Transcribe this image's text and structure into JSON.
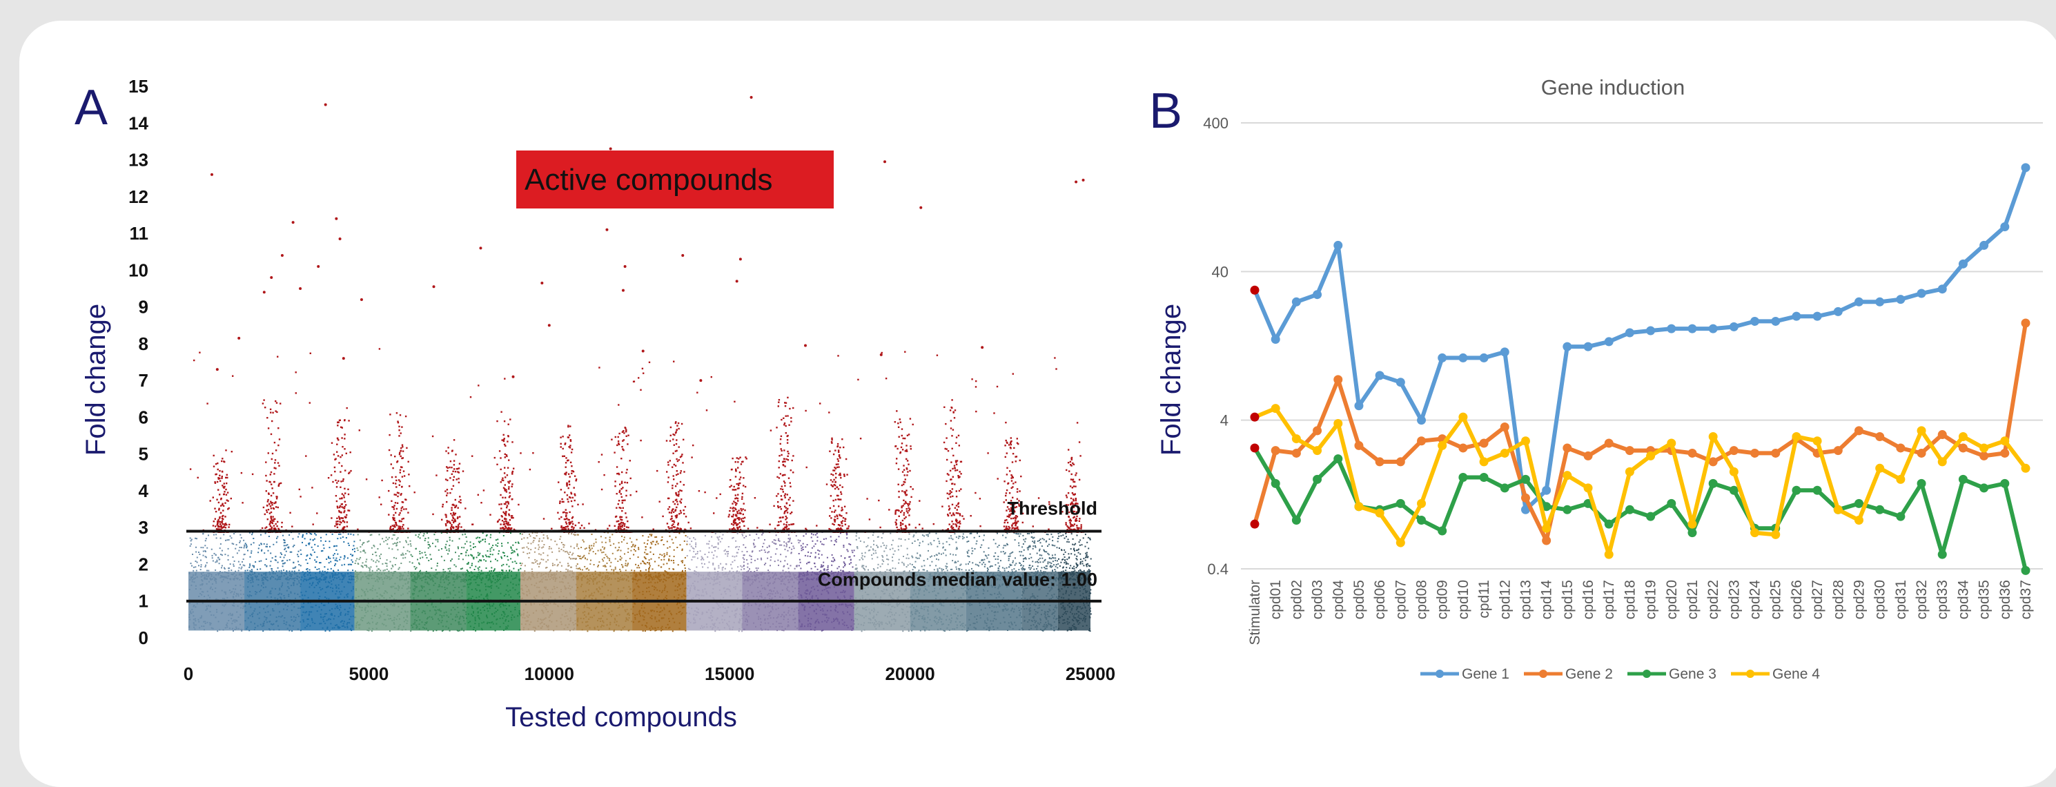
{
  "chart_data": [
    {
      "type": "scatter",
      "panel_letter": "A",
      "xlabel": "Tested compounds",
      "ylabel": "Fold change",
      "xlim": [
        0,
        25000
      ],
      "ylim": [
        0,
        15
      ],
      "x_ticks": [
        0,
        5000,
        10000,
        15000,
        20000,
        25000
      ],
      "y_ticks": [
        0,
        1,
        2,
        3,
        4,
        5,
        6,
        7,
        8,
        9,
        10,
        11,
        12,
        13,
        14,
        15
      ],
      "x_tick_labels": [
        "0",
        "5000",
        "10000",
        "15000",
        "20000",
        "25000"
      ],
      "y_tick_labels": [
        "0",
        "1",
        "2",
        "3",
        "4",
        "5",
        "6",
        "7",
        "8",
        "9",
        "10",
        "11",
        "12",
        "13",
        "14",
        "15"
      ],
      "active_label": "Active compounds",
      "threshold": {
        "value": 2.9,
        "label": "Threshold"
      },
      "median": {
        "value": 1.0,
        "label": "Compounds median value: 1.00"
      },
      "plates": [
        {
          "x_start": 0,
          "x_end": 1550,
          "color": "#6a8caa"
        },
        {
          "x_start": 1550,
          "x_end": 3100,
          "color": "#3d78a3"
        },
        {
          "x_start": 3100,
          "x_end": 4600,
          "color": "#1f6fa8"
        },
        {
          "x_start": 4600,
          "x_end": 6150,
          "color": "#6e9a82"
        },
        {
          "x_start": 6150,
          "x_end": 7700,
          "color": "#3f8a5e"
        },
        {
          "x_start": 7700,
          "x_end": 9200,
          "color": "#22874a"
        },
        {
          "x_start": 9200,
          "x_end": 10750,
          "color": "#ad9677"
        },
        {
          "x_start": 10750,
          "x_end": 12300,
          "color": "#a87f3f"
        },
        {
          "x_start": 12300,
          "x_end": 13800,
          "color": "#a2681c"
        },
        {
          "x_start": 13800,
          "x_end": 15350,
          "color": "#a7a3bb"
        },
        {
          "x_start": 15350,
          "x_end": 16900,
          "color": "#8a7ea8"
        },
        {
          "x_start": 16900,
          "x_end": 18450,
          "color": "#6e5a98"
        },
        {
          "x_start": 18450,
          "x_end": 20000,
          "color": "#8c9ca6"
        },
        {
          "x_start": 20000,
          "x_end": 21550,
          "color": "#6d8a98"
        },
        {
          "x_start": 21550,
          "x_end": 23100,
          "color": "#557789"
        },
        {
          "x_start": 23100,
          "x_end": 24100,
          "color": "#4b6b7c"
        },
        {
          "x_start": 24100,
          "x_end": 25000,
          "color": "#2f4b5a"
        }
      ],
      "inactive_range": [
        0.0,
        2.9
      ],
      "active_color": "#b0171a",
      "active_hotspots": [
        {
          "x": 900,
          "y_max": 5.0
        },
        {
          "x": 2300,
          "y_max": 6.5
        },
        {
          "x": 4200,
          "y_max": 6.0
        },
        {
          "x": 5800,
          "y_max": 6.2
        },
        {
          "x": 7300,
          "y_max": 5.2
        },
        {
          "x": 8800,
          "y_max": 6.0
        },
        {
          "x": 10500,
          "y_max": 5.8
        },
        {
          "x": 12000,
          "y_max": 5.8
        },
        {
          "x": 13500,
          "y_max": 6.0
        },
        {
          "x": 15200,
          "y_max": 5.0
        },
        {
          "x": 16500,
          "y_max": 6.5
        },
        {
          "x": 18000,
          "y_max": 5.5
        },
        {
          "x": 19800,
          "y_max": 6.0
        },
        {
          "x": 21200,
          "y_max": 6.5
        },
        {
          "x": 22800,
          "y_max": 5.5
        },
        {
          "x": 24500,
          "y_max": 5.0
        }
      ],
      "outliers": [
        {
          "x": 650,
          "y": 12.6
        },
        {
          "x": 3800,
          "y": 14.5
        },
        {
          "x": 15600,
          "y": 14.7
        },
        {
          "x": 11700,
          "y": 13.3
        },
        {
          "x": 19300,
          "y": 12.95
        },
        {
          "x": 24600,
          "y": 12.4
        },
        {
          "x": 24800,
          "y": 12.45
        },
        {
          "x": 2900,
          "y": 11.3
        },
        {
          "x": 4100,
          "y": 11.4
        },
        {
          "x": 20300,
          "y": 11.7
        },
        {
          "x": 11600,
          "y": 11.1
        },
        {
          "x": 4200,
          "y": 10.85
        },
        {
          "x": 8100,
          "y": 10.6
        },
        {
          "x": 2600,
          "y": 10.4
        },
        {
          "x": 13700,
          "y": 10.4
        },
        {
          "x": 15300,
          "y": 10.3
        },
        {
          "x": 12100,
          "y": 10.1
        },
        {
          "x": 2300,
          "y": 9.8
        },
        {
          "x": 3600,
          "y": 10.1
        },
        {
          "x": 15200,
          "y": 9.7
        },
        {
          "x": 9800,
          "y": 9.65
        },
        {
          "x": 6800,
          "y": 9.55
        },
        {
          "x": 2100,
          "y": 9.4
        },
        {
          "x": 3100,
          "y": 9.5
        },
        {
          "x": 12050,
          "y": 9.45
        },
        {
          "x": 4800,
          "y": 9.2
        },
        {
          "x": 10000,
          "y": 8.5
        },
        {
          "x": 1400,
          "y": 8.15
        },
        {
          "x": 17100,
          "y": 7.95
        },
        {
          "x": 22000,
          "y": 7.9
        },
        {
          "x": 12600,
          "y": 7.8
        },
        {
          "x": 19200,
          "y": 7.7
        },
        {
          "x": 800,
          "y": 7.3
        },
        {
          "x": 4300,
          "y": 7.6
        },
        {
          "x": 9000,
          "y": 7.1
        },
        {
          "x": 14200,
          "y": 7.0
        }
      ]
    },
    {
      "type": "line",
      "panel_letter": "B",
      "title": "Gene induction",
      "ylabel": "Fold change",
      "xlabel": "",
      "y_scale": "log10",
      "ylim": [
        0.4,
        400
      ],
      "y_ticks": [
        0.4,
        4,
        40,
        400
      ],
      "y_tick_labels": [
        "0.4",
        "4",
        "40",
        "400"
      ],
      "grid": true,
      "legend_position": "bottom",
      "categories": [
        "Stimulator",
        "cpd01",
        "cpd02",
        "cpd03",
        "cpd04",
        "cpd05",
        "cpd06",
        "cpd07",
        "cpd08",
        "cpd09",
        "cpd10",
        "cpd11",
        "cpd12",
        "cpd13",
        "cpd14",
        "cpd15",
        "cpd16",
        "cpd17",
        "cpd18",
        "cpd19",
        "cpd20",
        "cpd21",
        "cpd22",
        "cpd23",
        "cpd24",
        "cpd25",
        "cpd26",
        "cpd27",
        "cpd28",
        "cpd29",
        "cpd30",
        "cpd31",
        "cpd32",
        "cpd33",
        "cpd34",
        "cpd35",
        "cpd36",
        "cpd37"
      ],
      "series": [
        {
          "name": "Gene 1",
          "color": "#5b9bd5",
          "values": [
            30,
            14,
            25,
            28,
            60,
            5.0,
            8.0,
            7.2,
            4.0,
            10.5,
            10.5,
            10.5,
            11.5,
            1.0,
            1.35,
            12.5,
            12.5,
            13.5,
            15.5,
            16,
            16.5,
            16.5,
            16.5,
            17,
            18.5,
            18.5,
            20,
            20,
            21.5,
            25,
            25,
            26,
            28.5,
            30.5,
            45,
            60,
            80,
            200
          ]
        },
        {
          "name": "Gene 2",
          "color": "#ed7d31",
          "values": [
            0.8,
            2.5,
            2.4,
            3.4,
            7.5,
            2.7,
            2.1,
            2.1,
            2.9,
            3.0,
            2.6,
            2.8,
            3.6,
            1.2,
            0.62,
            2.6,
            2.3,
            2.8,
            2.5,
            2.5,
            2.5,
            2.4,
            2.1,
            2.5,
            2.4,
            2.4,
            3.0,
            2.4,
            2.5,
            3.4,
            3.1,
            2.6,
            2.4,
            3.2,
            2.6,
            2.3,
            2.4,
            18
          ]
        },
        {
          "name": "Gene 3",
          "color": "#2ea049",
          "values": [
            2.6,
            1.5,
            0.85,
            1.6,
            2.2,
            1.05,
            1.0,
            1.1,
            0.85,
            0.72,
            1.65,
            1.65,
            1.4,
            1.6,
            1.05,
            1.0,
            1.1,
            0.8,
            1.0,
            0.9,
            1.1,
            0.7,
            1.5,
            1.35,
            0.75,
            0.75,
            1.35,
            1.35,
            1.0,
            1.1,
            1.0,
            0.9,
            1.5,
            0.5,
            1.6,
            1.4,
            1.5,
            0.39
          ]
        },
        {
          "name": "Gene 4",
          "color": "#ffc000",
          "values": [
            4.2,
            4.8,
            3.0,
            2.5,
            3.8,
            1.05,
            0.95,
            0.6,
            1.1,
            2.7,
            4.2,
            2.1,
            2.4,
            2.9,
            0.75,
            1.7,
            1.4,
            0.5,
            1.8,
            2.3,
            2.8,
            0.8,
            3.1,
            1.8,
            0.7,
            0.68,
            3.1,
            2.9,
            1.0,
            0.85,
            1.9,
            1.6,
            3.4,
            2.1,
            3.1,
            2.6,
            2.9,
            1.9
          ]
        }
      ],
      "markers_at_stimulator": [
        {
          "series": "Gene 1",
          "color": "#c00000"
        },
        {
          "series": "Gene 2",
          "color": "#c00000"
        },
        {
          "series": "Gene 3",
          "color": "#c00000"
        },
        {
          "series": "Gene 4",
          "color": "#c00000"
        }
      ]
    }
  ]
}
